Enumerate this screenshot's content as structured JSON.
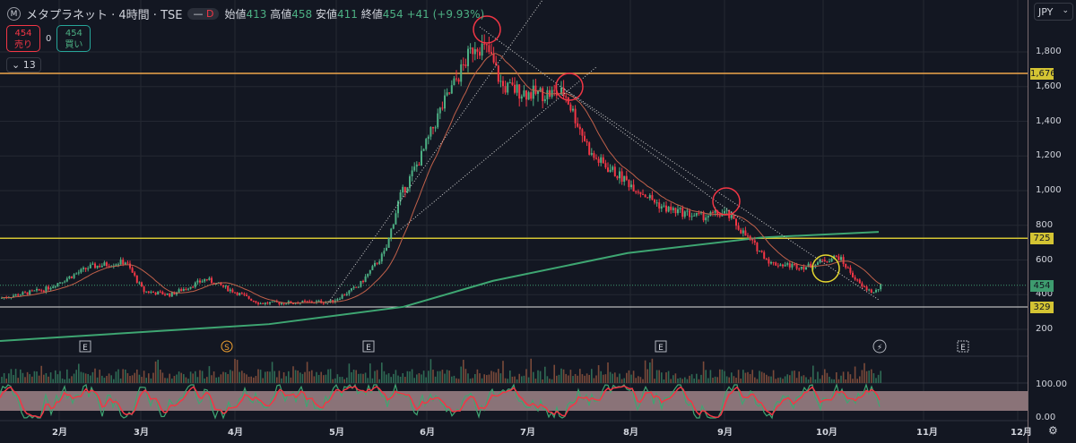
{
  "header": {
    "symbol_logo": "M",
    "title": "メタプラネット · 4時間 · TSE",
    "badge_dash": "—",
    "badge": "D",
    "open_label": "始値",
    "open": "413",
    "high_label": "高値",
    "high": "458",
    "low_label": "安値",
    "low": "411",
    "close_label": "終値",
    "close": "454",
    "change": "+41 (+9.93%)"
  },
  "trade": {
    "sell_price": "454",
    "sell_label": "売り",
    "spread": "0",
    "buy_price": "454",
    "buy_label": "買い"
  },
  "indicators_toggle": "13",
  "axis": {
    "currency": "JPY",
    "ticks": [
      "1,800",
      "1,600",
      "1,400",
      "1,200",
      "1,000",
      "800",
      "600",
      "400",
      "200"
    ],
    "tick_values": [
      1800,
      1600,
      1400,
      1200,
      1000,
      800,
      600,
      400,
      200
    ],
    "stoch_ticks": [
      "100.00",
      "0.00"
    ],
    "labels": [
      {
        "text": "1,676",
        "value": 1676,
        "color": "#d4c433"
      },
      {
        "text": "725",
        "value": 725,
        "color": "#d4c433"
      },
      {
        "text": "454",
        "value": 454,
        "color": "#3e9c6f"
      },
      {
        "text": "329",
        "value": 329,
        "color": "#d4c433"
      }
    ]
  },
  "months": [
    "2月",
    "3月",
    "4月",
    "5月",
    "6月",
    "7月",
    "8月",
    "9月",
    "10月",
    "11月",
    "12月"
  ],
  "events": [
    "E",
    "S",
    "E",
    "E",
    "⚡",
    "E"
  ],
  "colors": {
    "up": "#4caf83",
    "down": "#f23645",
    "ma200": "#3ea672",
    "resistance": "#f0a64a",
    "level": "#d4c433"
  },
  "chart_data": {
    "type": "candlestick",
    "price_range": [
      200,
      1800
    ],
    "path": [
      [
        0,
        380
      ],
      [
        50,
        430
      ],
      [
        100,
        560
      ],
      [
        140,
        590
      ],
      [
        160,
        420
      ],
      [
        190,
        400
      ],
      [
        230,
        490
      ],
      [
        260,
        420
      ],
      [
        290,
        350
      ],
      [
        370,
        360
      ],
      [
        400,
        450
      ],
      [
        430,
        650
      ],
      [
        445,
        950
      ],
      [
        470,
        1200
      ],
      [
        490,
        1450
      ],
      [
        510,
        1650
      ],
      [
        530,
        1850
      ],
      [
        545,
        1800
      ],
      [
        560,
        1600
      ],
      [
        590,
        1560
      ],
      [
        630,
        1560
      ],
      [
        660,
        1200
      ],
      [
        700,
        1050
      ],
      [
        740,
        900
      ],
      [
        780,
        850
      ],
      [
        810,
        870
      ],
      [
        830,
        750
      ],
      [
        860,
        580
      ],
      [
        900,
        560
      ],
      [
        920,
        600
      ],
      [
        935,
        620
      ],
      [
        960,
        450
      ],
      [
        975,
        410
      ],
      [
        983,
        454
      ]
    ],
    "ma200": [
      [
        0,
        133
      ],
      [
        300,
        230
      ],
      [
        450,
        330
      ],
      [
        550,
        480
      ],
      [
        700,
        640
      ],
      [
        850,
        730
      ],
      [
        980,
        762
      ]
    ],
    "levels": [
      1676,
      725,
      454,
      329
    ]
  }
}
